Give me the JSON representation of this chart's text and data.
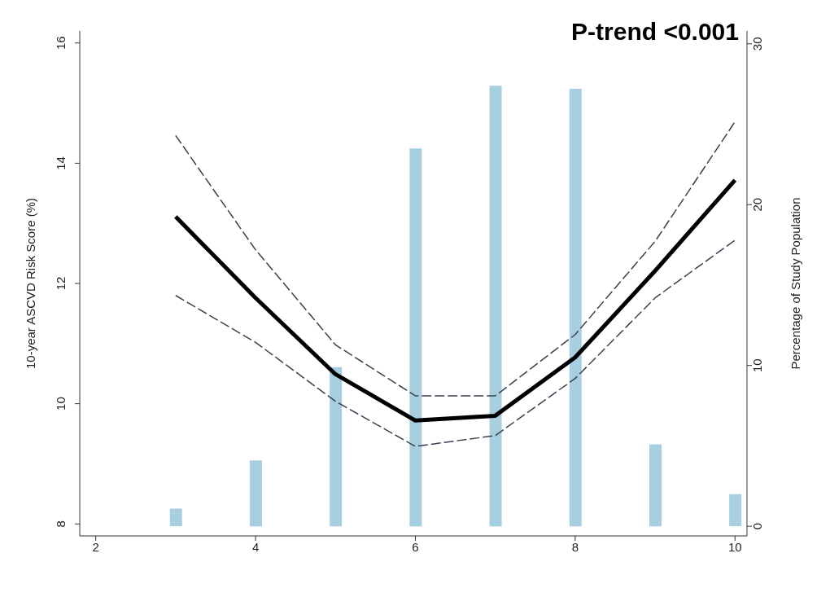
{
  "chart_data": {
    "type": "line",
    "ylabel": "10-year ASCVD Risk Score (%)",
    "y2label": "Percentage of Study Population",
    "annotations": [
      "P-trend <0.001"
    ],
    "x": [
      3,
      4,
      5,
      6,
      7,
      8,
      9,
      10
    ],
    "xlim": [
      1.8,
      10.15
    ],
    "xticks": [
      2,
      4,
      6,
      8,
      10
    ],
    "ylim": [
      7.8,
      16.2
    ],
    "yticks": [
      8,
      10,
      12,
      14,
      16
    ],
    "y2lim": [
      -0.6,
      30.8
    ],
    "y2ticks": [
      0,
      10,
      20,
      30
    ],
    "series": [
      {
        "type": "bar",
        "axis": "y2",
        "color": "#a8cfe0",
        "values": [
          1.1,
          4.1,
          9.9,
          23.5,
          27.4,
          27.2,
          5.1,
          2.0
        ]
      },
      {
        "color": "#000000",
        "line_style": "solid",
        "values": [
          13.11,
          11.76,
          10.49,
          9.72,
          9.8,
          10.77,
          12.21,
          13.72
        ]
      },
      {
        "color": "#3a4050",
        "line_style": "dashed",
        "values": [
          14.46,
          12.56,
          10.98,
          10.13,
          10.13,
          11.15,
          12.7,
          14.69
        ]
      },
      {
        "color": "#3a4050",
        "line_style": "dashed",
        "values": [
          11.8,
          11.02,
          10.04,
          9.29,
          9.47,
          10.42,
          11.76,
          12.72
        ]
      }
    ]
  }
}
